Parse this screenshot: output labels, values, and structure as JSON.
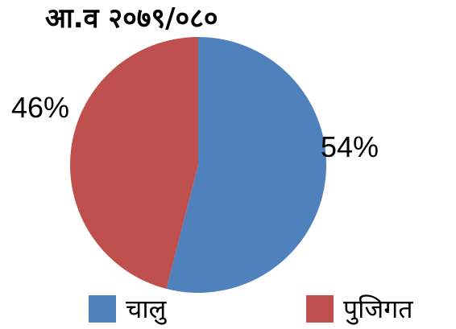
{
  "chart_data": {
    "type": "pie",
    "title": "आ.व  २०७९/०८०",
    "slices": [
      {
        "label": "चालु",
        "value": 54,
        "display": "54%",
        "color": "#4F81BD"
      },
      {
        "label": "पुजिगत",
        "value": 46,
        "display": "46%",
        "color": "#C0504D"
      }
    ],
    "legend_position": "bottom"
  }
}
